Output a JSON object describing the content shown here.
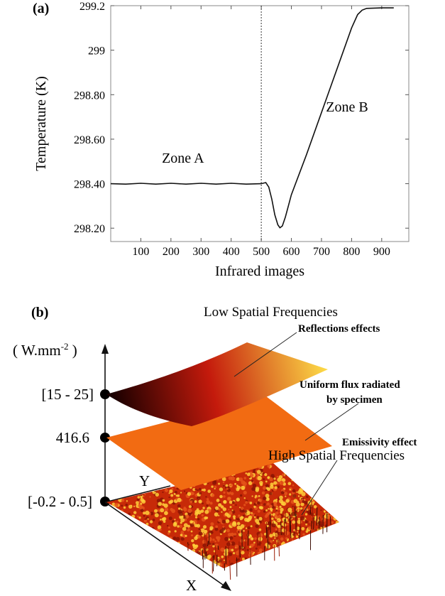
{
  "panels": {
    "a": {
      "label": "(a)"
    },
    "b": {
      "label": "(b)"
    }
  },
  "chart_data": [
    {
      "type": "line",
      "panel": "(a)",
      "title": "",
      "xlabel": "Infrared images",
      "ylabel": "Temperature (K)",
      "xlim": [
        0,
        990
      ],
      "ylim": [
        298.14,
        299.2
      ],
      "x_ticks": [
        100,
        200,
        300,
        400,
        500,
        600,
        700,
        800,
        900
      ],
      "x_tick_labels": [
        "100",
        "200",
        "300",
        "400",
        "500",
        "600",
        "700",
        "800",
        "900"
      ],
      "y_ticks": [
        298.2,
        298.4,
        298.6,
        298.8,
        299.0,
        299.2
      ],
      "y_tick_labels": [
        "298.20",
        "298.40",
        "298.60",
        "298.80",
        "299",
        "299.2"
      ],
      "grid": false,
      "vline": {
        "x": 500,
        "style": "dotted"
      },
      "annotations": [
        {
          "text": "Zone A",
          "x": 240,
          "y": 298.495
        },
        {
          "text": "Zone B",
          "x": 785,
          "y": 298.725
        }
      ],
      "series": [
        {
          "x": [
            0,
            50,
            100,
            150,
            200,
            250,
            300,
            350,
            400,
            450,
            500,
            515,
            525,
            535,
            545,
            555,
            562,
            570,
            580,
            590,
            600,
            650,
            700,
            750,
            800,
            820,
            835,
            850,
            900,
            940
          ],
          "y": [
            298.4,
            298.4,
            298.4,
            298.4,
            298.4,
            298.4,
            298.4,
            298.4,
            298.4,
            298.4,
            298.4,
            298.405,
            298.385,
            298.33,
            298.26,
            298.215,
            298.202,
            298.21,
            298.25,
            298.3,
            298.35,
            298.53,
            298.72,
            298.91,
            299.1,
            299.16,
            299.18,
            299.188,
            299.19,
            299.19
          ]
        }
      ]
    },
    {
      "type": "diagram",
      "panel": "(b)",
      "axis_unit_label": "( W.mm",
      "axis_unit_exponent": "-2",
      "axis_unit_close": " )",
      "axis_x_label": "X",
      "axis_y_label": "Y",
      "levels": [
        "[15 - 25]",
        "416.6",
        "[-0.2 - 0.5]"
      ],
      "layers": [
        {
          "title": "Low Spatial Frequencies",
          "description": "Reflections effects"
        },
        {
          "description_line1": "Uniform flux radiated",
          "description_line2": "by specimen"
        },
        {
          "description": "Emissivity effect",
          "title": "High Spatial Frequencies"
        }
      ],
      "colors": {
        "uniform_layer": "#f26b12",
        "reflection_dark": "#1a0000",
        "reflection_mid": "#c41a0c",
        "reflection_light": "#ffe34a",
        "noise_base": "#c72a08",
        "noise_peak": "#ffcf3a"
      }
    }
  ]
}
